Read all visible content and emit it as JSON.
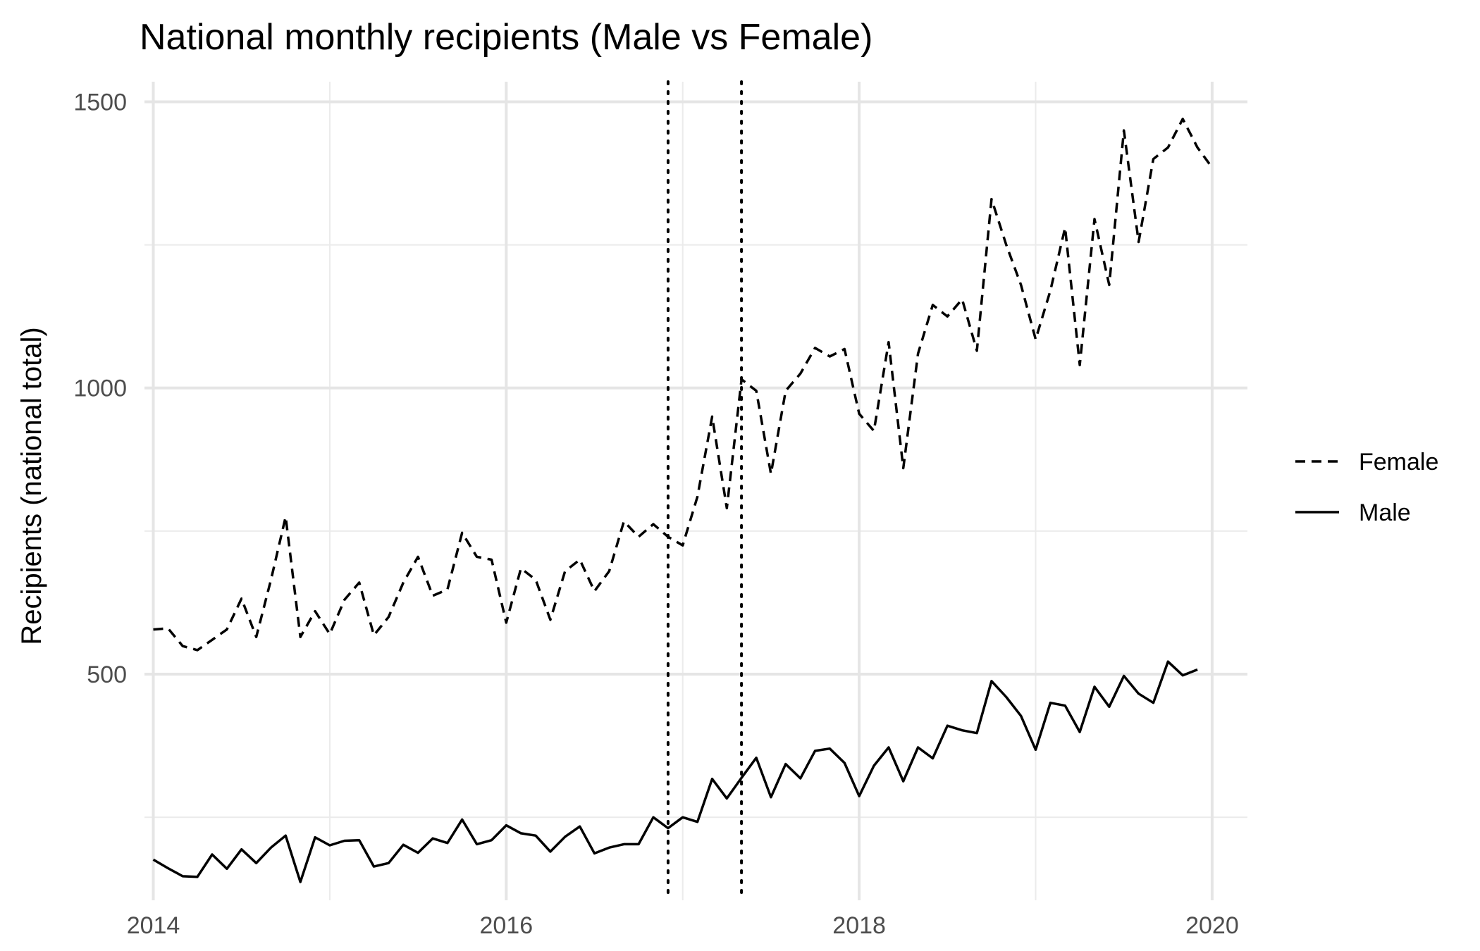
{
  "chart_data": {
    "type": "line",
    "title": "National monthly recipients (Male vs Female)",
    "xlabel": "",
    "ylabel": "Recipients (national total)",
    "xlim": [
      2013.95,
      2020.2
    ],
    "ylim": [
      105,
      1535
    ],
    "x_ticks": [
      2014,
      2016,
      2018,
      2020
    ],
    "x_tick_labels": [
      "2014",
      "2016",
      "2018",
      "2020"
    ],
    "y_ticks": [
      500,
      1000,
      1500
    ],
    "y_tick_labels": [
      "500",
      "1000",
      "1500"
    ],
    "grid": true,
    "legend_position": "right",
    "vlines": [
      2016.917,
      2017.333
    ],
    "x_start": 2014.0,
    "x_step_months": 1,
    "series": [
      {
        "name": "Female",
        "linestyle": "dashed",
        "values": [
          578,
          580,
          549,
          542,
          560,
          578,
          632,
          565,
          665,
          775,
          565,
          610,
          570,
          630,
          660,
          568,
          600,
          660,
          705,
          637,
          648,
          747,
          705,
          700,
          590,
          685,
          665,
          595,
          680,
          700,
          645,
          680,
          767,
          740,
          762,
          740,
          725,
          810,
          950,
          790,
          1015,
          995,
          850,
          995,
          1025,
          1070,
          1055,
          1068,
          955,
          925,
          1080,
          860,
          1060,
          1145,
          1125,
          1155,
          1065,
          1330,
          1250,
          1180,
          1085,
          1170,
          1280,
          1040,
          1295,
          1180,
          1450,
          1255,
          1400,
          1420,
          1470,
          1420,
          1385
        ]
      },
      {
        "name": "Male",
        "linestyle": "solid",
        "values": [
          176,
          161,
          147,
          146,
          185,
          160,
          194,
          170,
          197,
          218,
          137,
          215,
          201,
          209,
          210,
          164,
          170,
          202,
          188,
          213,
          205,
          246,
          203,
          210,
          236,
          222,
          218,
          190,
          216,
          234,
          187,
          197,
          203,
          203,
          250,
          231,
          250,
          242,
          317,
          283,
          319,
          354,
          285,
          343,
          318,
          366,
          370,
          345,
          287,
          340,
          372,
          313,
          372,
          353,
          410,
          402,
          397,
          488,
          460,
          427,
          368,
          450,
          445,
          399,
          478,
          443,
          497,
          466,
          450,
          522,
          498,
          508
        ]
      }
    ]
  }
}
